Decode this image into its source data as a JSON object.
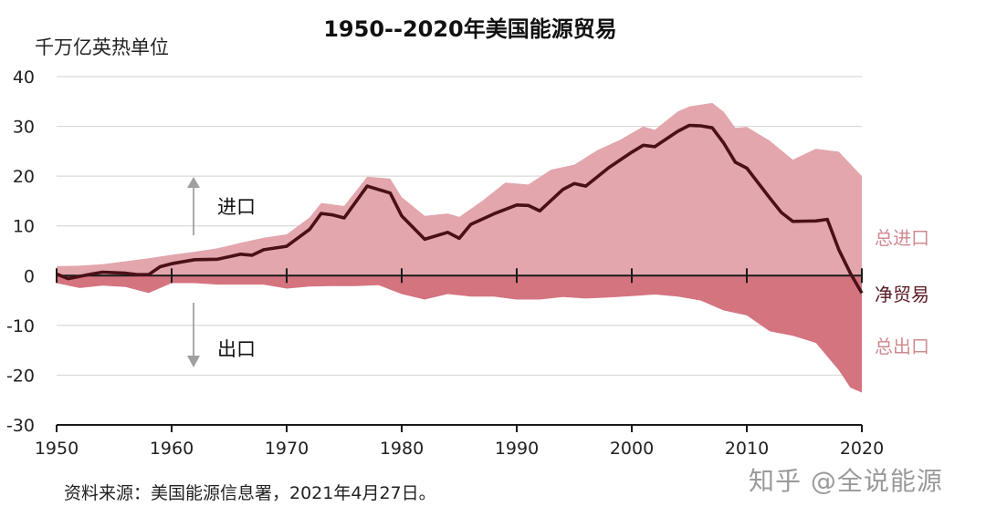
{
  "title": "1950--2020年美国能源贸易",
  "unit_label": "千万亿英热单位",
  "source": "资料来源：美国能源信息署，2021年4月27日。",
  "watermark": "知乎 @全说能源",
  "colors": {
    "imports_fill": "#e3a6ad",
    "exports_fill": "#d4747f",
    "net_line": "#4a1018",
    "grid": "#d9d9d9",
    "axis": "#1a1a1a",
    "arrow": "#a0a0a0",
    "right_label_light": "#cf8a92",
    "right_label_dark": "#5a1a22"
  },
  "chart_data": {
    "type": "area",
    "title": "1950--2020年美国能源贸易",
    "ylabel": "千万亿英热单位",
    "xlim": [
      1950,
      2020
    ],
    "ylim": [
      -30,
      40
    ],
    "x_ticks": [
      1950,
      1960,
      1970,
      1980,
      1990,
      2000,
      2010,
      2020
    ],
    "y_ticks": [
      40,
      30,
      20,
      10,
      0,
      -10,
      -20,
      -30
    ],
    "grid": "horizontal",
    "annotations": [
      "进口",
      "出口"
    ],
    "series": [
      {
        "name": "总进口",
        "x": [
          1950,
          1952,
          1954,
          1956,
          1958,
          1960,
          1962,
          1964,
          1966,
          1968,
          1970,
          1972,
          1973,
          1975,
          1977,
          1979,
          1980,
          1982,
          1984,
          1985,
          1987,
          1989,
          1991,
          1993,
          1995,
          1997,
          1999,
          2001,
          2002,
          2004,
          2005,
          2007,
          2008,
          2009,
          2010,
          2012,
          2014,
          2016,
          2018,
          2020
        ],
        "values": [
          1.9,
          2.0,
          2.3,
          2.9,
          3.5,
          4.2,
          4.8,
          5.5,
          6.6,
          7.6,
          8.3,
          11.7,
          14.6,
          14.0,
          19.9,
          19.5,
          15.8,
          12.0,
          12.5,
          11.8,
          15.0,
          18.7,
          18.3,
          21.3,
          22.3,
          25.2,
          27.3,
          30.0,
          29.3,
          33.0,
          34.0,
          34.7,
          32.9,
          29.7,
          29.9,
          27.1,
          23.3,
          25.5,
          24.9,
          20.0
        ]
      },
      {
        "name": "总出口",
        "x": [
          1950,
          1952,
          1954,
          1956,
          1958,
          1960,
          1962,
          1964,
          1966,
          1968,
          1970,
          1972,
          1974,
          1976,
          1978,
          1980,
          1982,
          1984,
          1986,
          1988,
          1990,
          1992,
          1994,
          1996,
          1998,
          2000,
          2002,
          2004,
          2006,
          2008,
          2010,
          2012,
          2014,
          2016,
          2018,
          2019,
          2020
        ],
        "values": [
          -1.5,
          -2.5,
          -2.0,
          -2.3,
          -3.5,
          -1.5,
          -1.5,
          -1.8,
          -1.8,
          -1.8,
          -2.6,
          -2.2,
          -2.1,
          -2.1,
          -1.9,
          -3.7,
          -4.8,
          -3.7,
          -4.2,
          -4.2,
          -4.8,
          -4.8,
          -4.3,
          -4.6,
          -4.4,
          -4.1,
          -3.8,
          -4.2,
          -5.0,
          -7.0,
          -8.0,
          -11.2,
          -12.1,
          -13.5,
          -19.0,
          -22.5,
          -23.5
        ]
      },
      {
        "name": "净贸易",
        "x": [
          1950,
          1951,
          1953,
          1954,
          1956,
          1957,
          1958,
          1959,
          1960,
          1962,
          1964,
          1966,
          1967,
          1968,
          1970,
          1972,
          1973,
          1974,
          1975,
          1977,
          1979,
          1980,
          1982,
          1984,
          1985,
          1986,
          1988,
          1990,
          1991,
          1992,
          1994,
          1995,
          1996,
          1998,
          2000,
          2001,
          2002,
          2004,
          2005,
          2006,
          2007,
          2008,
          2009,
          2010,
          2012,
          2013,
          2014,
          2016,
          2017,
          2018,
          2019,
          2020
        ],
        "values": [
          0.3,
          -0.6,
          0.3,
          0.7,
          0.5,
          0.2,
          0.2,
          1.8,
          2.4,
          3.2,
          3.3,
          4.3,
          4.1,
          5.2,
          5.9,
          9.3,
          12.5,
          12.2,
          11.6,
          18.0,
          16.6,
          12.0,
          7.3,
          8.7,
          7.5,
          10.3,
          12.4,
          14.2,
          14.1,
          13.0,
          17.3,
          18.5,
          18.0,
          21.7,
          24.8,
          26.2,
          25.9,
          29.0,
          30.2,
          30.1,
          29.7,
          26.6,
          22.8,
          21.6,
          15.6,
          12.7,
          10.9,
          11.0,
          11.3,
          5.2,
          0.5,
          -3.5
        ]
      }
    ]
  },
  "labels": {
    "imports_arrow": "进口",
    "exports_arrow": "出口",
    "total_imports": "总进口",
    "net_trade": "净贸易",
    "total_exports": "总出口"
  }
}
